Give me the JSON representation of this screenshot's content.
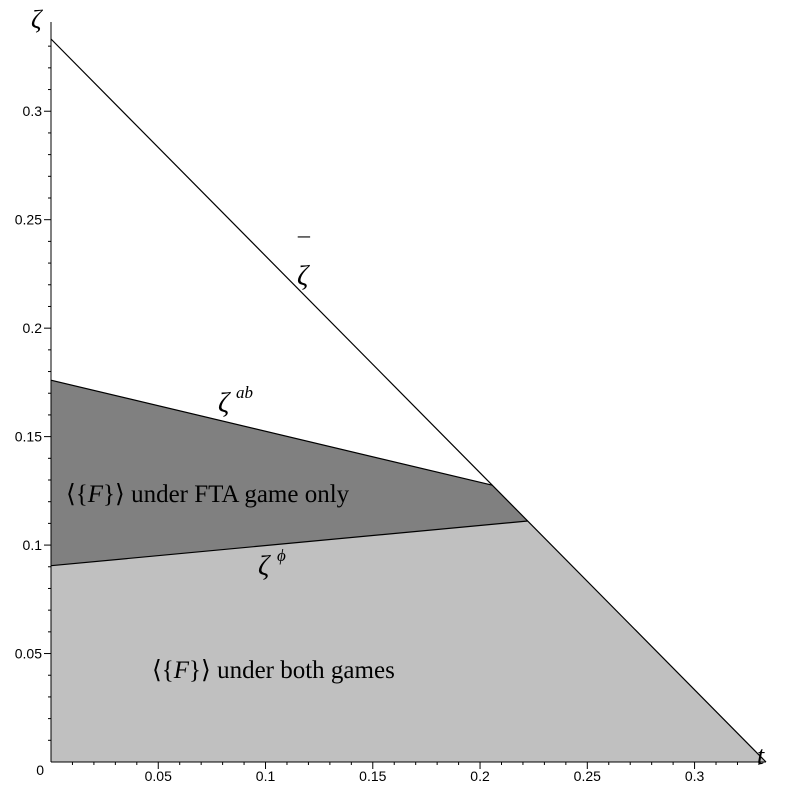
{
  "chart_data": {
    "type": "area",
    "xlabel": "t",
    "ylabel": "ζ",
    "xlim": [
      0,
      0.3333
    ],
    "ylim": [
      0,
      0.3333
    ],
    "x_ticks": [
      0.05,
      0.1,
      0.15,
      0.2,
      0.25,
      0.3
    ],
    "x_tick_labels": [
      "0.05",
      "0.1",
      "0.15",
      "0.2",
      "0.25",
      "0.3"
    ],
    "y_ticks": [
      0.05,
      0.1,
      0.15,
      0.2,
      0.25,
      0.3
    ],
    "y_tick_labels": [
      "0.05",
      "0.1",
      "0.15",
      "0.2",
      "0.25",
      "0.3"
    ],
    "origin_label": "0",
    "grid": false,
    "series": [
      {
        "label_base": "ζ",
        "label_over": "¯",
        "label_sup": "",
        "color": "#000000",
        "points": [
          [
            0,
            0.3333
          ],
          [
            0.3333,
            0
          ]
        ]
      },
      {
        "label_base": "ζ",
        "label_over": "",
        "label_sup": "ab",
        "color": "#000000",
        "points": [
          [
            0,
            0.176
          ],
          [
            0.2057,
            0.1276
          ]
        ]
      },
      {
        "label_base": "ζ",
        "label_over": "",
        "label_sup": "ϕ",
        "color": "#000000",
        "points": [
          [
            0,
            0.0905
          ],
          [
            0.2222,
            0.1111
          ]
        ]
      }
    ],
    "regions": [
      {
        "label": "⟨{F}⟩ under FTA game only",
        "color": "#808080",
        "polygon": [
          [
            0,
            0.0905
          ],
          [
            0.2222,
            0.1111
          ],
          [
            0.2057,
            0.1276
          ],
          [
            0,
            0.176
          ]
        ]
      },
      {
        "label": "⟨{F}⟩ under both games",
        "color": "#c0c0c0",
        "polygon": [
          [
            0,
            0
          ],
          [
            0.3333,
            0
          ],
          [
            0.2222,
            0.1111
          ],
          [
            0,
            0.0905
          ]
        ]
      }
    ],
    "region_labels": {
      "fta_only": {
        "prefix": "⟨{",
        "var": "F",
        "suffix": "}⟩",
        "text": " under FTA game only"
      },
      "both": {
        "prefix": "⟨{",
        "var": "F",
        "suffix": "}⟩",
        "text": " under both games"
      }
    }
  }
}
